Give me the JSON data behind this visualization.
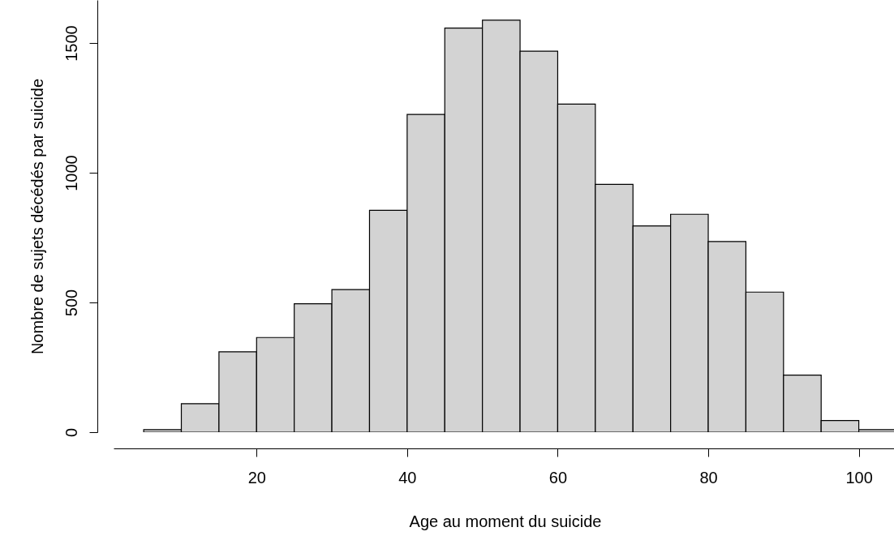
{
  "chart_data": {
    "type": "histogram",
    "xlabel": "Age au moment du suicide",
    "ylabel": "Nombre de sujets décédés par suicide",
    "bins": [
      5,
      10,
      15,
      20,
      25,
      30,
      35,
      40,
      45,
      50,
      55,
      60,
      65,
      70,
      75,
      80,
      85,
      90,
      95,
      100,
      105
    ],
    "values": [
      10,
      110,
      310,
      365,
      495,
      550,
      855,
      1225,
      1558,
      1588,
      1469,
      1265,
      955,
      795,
      840,
      735,
      540,
      220,
      45,
      10
    ],
    "color": "#d3d3d3",
    "xlim": [
      1,
      105
    ],
    "xticks": [
      20,
      40,
      60,
      80,
      100
    ],
    "ylim": [
      0,
      1666
    ],
    "yticks": [
      0,
      500,
      1000,
      1500
    ],
    "grid": false
  }
}
